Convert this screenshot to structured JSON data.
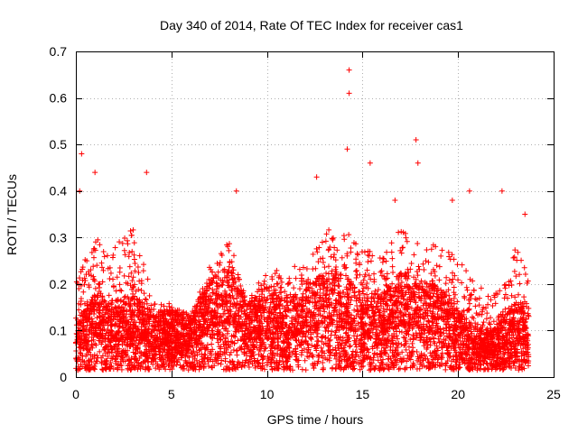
{
  "chart_data": {
    "type": "scatter",
    "title": "Day 340 of 2014, Rate Of TEC Index for receiver cas1",
    "xlabel": "GPS time / hours",
    "ylabel": "ROTI / TECUs",
    "xlim": [
      0,
      25
    ],
    "ylim": [
      0,
      0.7
    ],
    "xticks": [
      0,
      5,
      10,
      15,
      20,
      25
    ],
    "yticks": [
      0,
      0.1,
      0.2,
      0.3,
      0.4,
      0.5,
      0.6,
      0.7
    ],
    "grid": true,
    "marker": "+",
    "color": "#ff0000",
    "point_count_estimate": 6000,
    "series": [
      {
        "name": "cas1",
        "notable_points": [
          {
            "x": 14.3,
            "y": 0.66
          },
          {
            "x": 14.3,
            "y": 0.61
          },
          {
            "x": 17.8,
            "y": 0.51
          },
          {
            "x": 14.2,
            "y": 0.49
          },
          {
            "x": 0.3,
            "y": 0.48
          },
          {
            "x": 17.9,
            "y": 0.46
          },
          {
            "x": 15.4,
            "y": 0.46
          },
          {
            "x": 1.0,
            "y": 0.44
          },
          {
            "x": 3.7,
            "y": 0.44
          },
          {
            "x": 12.6,
            "y": 0.43
          },
          {
            "x": 0.2,
            "y": 0.4
          },
          {
            "x": 8.4,
            "y": 0.4
          },
          {
            "x": 20.6,
            "y": 0.4
          },
          {
            "x": 22.3,
            "y": 0.4
          },
          {
            "x": 19.7,
            "y": 0.38
          },
          {
            "x": 16.7,
            "y": 0.38
          },
          {
            "x": 23.5,
            "y": 0.35
          }
        ],
        "envelope": [
          {
            "x": 0,
            "typical": 0.07,
            "high": 0.22
          },
          {
            "x": 1,
            "typical": 0.11,
            "high": 0.3
          },
          {
            "x": 2,
            "typical": 0.1,
            "high": 0.28
          },
          {
            "x": 3,
            "typical": 0.11,
            "high": 0.32
          },
          {
            "x": 4,
            "typical": 0.08,
            "high": 0.18
          },
          {
            "x": 5,
            "typical": 0.09,
            "high": 0.16
          },
          {
            "x": 6,
            "typical": 0.08,
            "high": 0.13
          },
          {
            "x": 7,
            "typical": 0.13,
            "high": 0.24
          },
          {
            "x": 8,
            "typical": 0.15,
            "high": 0.3
          },
          {
            "x": 9,
            "typical": 0.1,
            "high": 0.16
          },
          {
            "x": 10,
            "typical": 0.12,
            "high": 0.24
          },
          {
            "x": 11,
            "typical": 0.1,
            "high": 0.22
          },
          {
            "x": 12,
            "typical": 0.12,
            "high": 0.26
          },
          {
            "x": 13,
            "typical": 0.14,
            "high": 0.32
          },
          {
            "x": 14,
            "typical": 0.14,
            "high": 0.32
          },
          {
            "x": 15,
            "typical": 0.11,
            "high": 0.28
          },
          {
            "x": 16,
            "typical": 0.11,
            "high": 0.26
          },
          {
            "x": 17,
            "typical": 0.14,
            "high": 0.32
          },
          {
            "x": 18,
            "typical": 0.13,
            "high": 0.3
          },
          {
            "x": 19,
            "typical": 0.12,
            "high": 0.28
          },
          {
            "x": 20,
            "typical": 0.09,
            "high": 0.26
          },
          {
            "x": 21,
            "typical": 0.06,
            "high": 0.2
          },
          {
            "x": 22,
            "typical": 0.06,
            "high": 0.18
          },
          {
            "x": 23,
            "typical": 0.1,
            "high": 0.28
          },
          {
            "x": 23.7,
            "typical": 0.08,
            "high": 0.22
          }
        ]
      }
    ]
  }
}
